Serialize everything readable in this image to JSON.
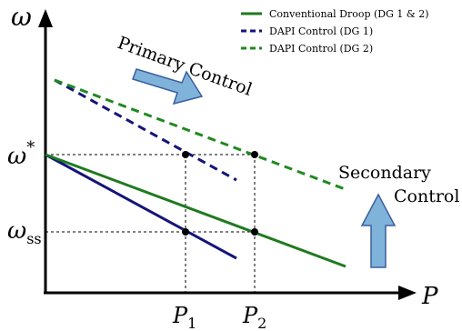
{
  "axes": {
    "y_label": "ω",
    "x_label": "P",
    "omega_star_base": "ω",
    "omega_star_sup": "*",
    "omega_ss_base": "ω",
    "omega_ss_sub": "ss",
    "p1_base": "P",
    "p1_sub": "1",
    "p2_base": "P",
    "p2_sub": "2"
  },
  "legend": {
    "items": [
      {
        "label": "Conventional Droop  (DG 1 & 2)",
        "color": "#1f7a1f",
        "style": "solid"
      },
      {
        "label": "DAPI Control (DG 1)",
        "color": "#14147a",
        "style": "dashed"
      },
      {
        "label": "DAPI Control (DG 2)",
        "color": "#1f8a1f",
        "style": "dashed"
      }
    ]
  },
  "annotations": {
    "primary_label": "Primary Control",
    "secondary_line1": "Secondary",
    "secondary_line2": "Control"
  },
  "colors": {
    "green": "#1f7a1f",
    "dark_blue": "#14147a",
    "arrow_fill": "#7fb3d9",
    "arrow_stroke": "#3a5fa0",
    "axis": "#000000"
  }
}
